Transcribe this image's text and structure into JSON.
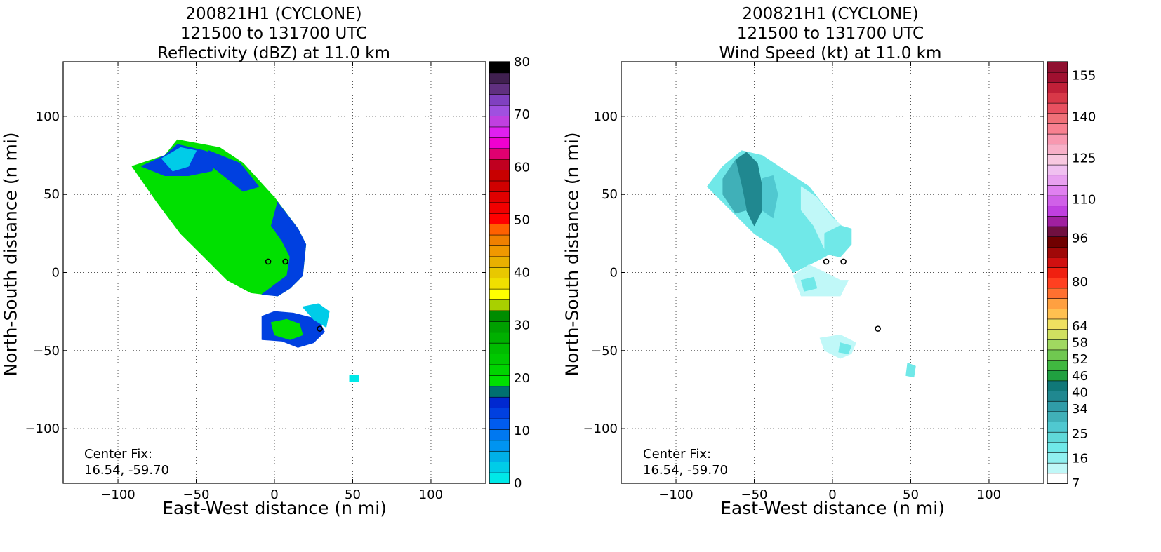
{
  "chart_data": [
    {
      "type": "heatmap",
      "title_lines": [
        "200821H1 (CYCLONE)",
        "121500 to 131700 UTC",
        "Reflectivity (dBZ) at 11.0 km"
      ],
      "xlabel": "East-West distance (n mi)",
      "ylabel": "North-South distance (n mi)",
      "xlim": [
        -135,
        135
      ],
      "ylim": [
        -135,
        135
      ],
      "xticks": [
        -100,
        -50,
        0,
        50,
        100
      ],
      "yticks": [
        -100,
        -50,
        0,
        50,
        100
      ],
      "xtick_labels": [
        "−100",
        "−50",
        "0",
        "50",
        "100"
      ],
      "ytick_labels": [
        "−100",
        "−50",
        "0",
        "50",
        "100"
      ],
      "grid": true,
      "annotation_lines": [
        "Center Fix:",
        "16.54, -59.70"
      ],
      "colorbar": {
        "range": [
          0,
          80
        ],
        "ticks": [
          0,
          10,
          20,
          30,
          40,
          50,
          60,
          70,
          80
        ],
        "tick_labels": [
          "0",
          "10",
          "20",
          "30",
          "40",
          "50",
          "60",
          "70",
          "80"
        ],
        "colors": [
          "#00e8e8",
          "#00cce8",
          "#00b0e8",
          "#0094f0",
          "#0078f0",
          "#005cf0",
          "#0040e0",
          "#0028d0",
          "#007070",
          "#00e000",
          "#00d400",
          "#00c800",
          "#00bc00",
          "#00b000",
          "#00a000",
          "#008c00",
          "#a8d000",
          "#ffff00",
          "#f0e000",
          "#e8c800",
          "#e8b000",
          "#f09800",
          "#f08000",
          "#ff6000",
          "#ff0000",
          "#f00000",
          "#e00000",
          "#d00000",
          "#c80000",
          "#c00020",
          "#e00070",
          "#f000d0",
          "#e020f0",
          "#c040e0",
          "#a050e0",
          "#8040c0",
          "#603080",
          "#402050",
          "#000000"
        ]
      },
      "fields": [
        {
          "region": "main-band",
          "polygon": [
            [
              -91,
              68
            ],
            [
              -70,
              75
            ],
            [
              -62,
              85
            ],
            [
              -35,
              80
            ],
            [
              -20,
              70
            ],
            [
              0,
              48
            ],
            [
              15,
              28
            ],
            [
              20,
              18
            ],
            [
              18,
              -2
            ],
            [
              10,
              -10
            ],
            [
              2,
              -15
            ],
            [
              -15,
              -13
            ],
            [
              -30,
              -5
            ],
            [
              -45,
              10
            ],
            [
              -60,
              25
            ],
            [
              -75,
              45
            ]
          ],
          "color": "#00e000"
        },
        {
          "region": "main-band-edge-west",
          "polygon": [
            [
              -85,
              68
            ],
            [
              -70,
              75
            ],
            [
              -62,
              82
            ],
            [
              -45,
              78
            ],
            [
              -35,
              75
            ],
            [
              -40,
              65
            ],
            [
              -55,
              62
            ],
            [
              -70,
              62
            ]
          ],
          "color": "#0040e0"
        },
        {
          "region": "main-band-edge-north",
          "polygon": [
            [
              -42,
              78
            ],
            [
              -22,
              70
            ],
            [
              -10,
              55
            ],
            [
              -20,
              52
            ],
            [
              -30,
              60
            ],
            [
              -40,
              68
            ]
          ],
          "color": "#0040e0"
        },
        {
          "region": "main-band-edge-east",
          "polygon": [
            [
              2,
              45
            ],
            [
              15,
              28
            ],
            [
              20,
              18
            ],
            [
              18,
              -2
            ],
            [
              10,
              -10
            ],
            [
              2,
              -15
            ],
            [
              -8,
              -14
            ],
            [
              0,
              -8
            ],
            [
              8,
              -2
            ],
            [
              10,
              10
            ],
            [
              5,
              20
            ],
            [
              -2,
              30
            ]
          ],
          "color": "#0040e0"
        },
        {
          "region": "cyan-core",
          "polygon": [
            [
              -72,
              73
            ],
            [
              -60,
              80
            ],
            [
              -50,
              78
            ],
            [
              -55,
              68
            ],
            [
              -65,
              65
            ]
          ],
          "color": "#00cce8"
        },
        {
          "region": "southern-cell",
          "polygon": [
            [
              -8,
              -28
            ],
            [
              0,
              -25
            ],
            [
              12,
              -26
            ],
            [
              20,
              -28
            ],
            [
              28,
              -30
            ],
            [
              32,
              -38
            ],
            [
              25,
              -45
            ],
            [
              15,
              -48
            ],
            [
              5,
              -44
            ],
            [
              -8,
              -43
            ]
          ],
          "color": "#0040e0"
        },
        {
          "region": "southern-cell-core",
          "polygon": [
            [
              -2,
              -32
            ],
            [
              8,
              -30
            ],
            [
              16,
              -33
            ],
            [
              18,
              -40
            ],
            [
              10,
              -43
            ],
            [
              0,
              -40
            ]
          ],
          "color": "#00e000"
        },
        {
          "region": "southern-cyan",
          "polygon": [
            [
              18,
              -22
            ],
            [
              28,
              -20
            ],
            [
              35,
              -25
            ],
            [
              33,
              -35
            ],
            [
              25,
              -30
            ]
          ],
          "color": "#00cce8"
        },
        {
          "region": "far-south-speck",
          "polygon": [
            [
              48,
              -66
            ],
            [
              54,
              -66
            ],
            [
              54,
              -70
            ],
            [
              48,
              -70
            ]
          ],
          "color": "#00e8e8"
        }
      ],
      "circles": [
        [
          -4,
          7
        ],
        [
          7,
          7
        ],
        [
          29,
          -36
        ]
      ]
    },
    {
      "type": "heatmap",
      "title_lines": [
        "200821H1 (CYCLONE)",
        "121500 to 131700 UTC",
        "Wind Speed (kt) at 11.0 km"
      ],
      "xlabel": "East-West distance (n mi)",
      "ylabel": "North-South distance (n mi)",
      "xlim": [
        -135,
        135
      ],
      "ylim": [
        -135,
        135
      ],
      "xticks": [
        -100,
        -50,
        0,
        50,
        100
      ],
      "yticks": [
        -100,
        -50,
        0,
        50,
        100
      ],
      "xtick_labels": [
        "−100",
        "−50",
        "0",
        "50",
        "100"
      ],
      "ytick_labels": [
        "−100",
        "−50",
        "0",
        "50",
        "100"
      ],
      "grid": true,
      "annotation_lines": [
        "Center Fix:",
        "16.54, -59.70"
      ],
      "colorbar": {
        "range": [
          7,
          160
        ],
        "ticks": [
          7,
          16,
          25,
          34,
          40,
          46,
          52,
          58,
          64,
          80,
          96,
          110,
          125,
          140,
          155
        ],
        "tick_labels": [
          "7",
          "16",
          "25",
          "34",
          "40",
          "46",
          "52",
          "58",
          "64",
          "80",
          "96",
          "110",
          "125",
          "140",
          "155"
        ],
        "colors": [
          "#ffffff",
          "#c0f8f8",
          "#90f0f0",
          "#70e8e8",
          "#60d8d8",
          "#50c8d0",
          "#40b0b8",
          "#309ca8",
          "#208890",
          "#107878",
          "#20a040",
          "#40b840",
          "#70c850",
          "#a0d860",
          "#d0e060",
          "#f0e060",
          "#ffc050",
          "#ffa040",
          "#ff7030",
          "#ff4020",
          "#f02010",
          "#d01010",
          "#a00808",
          "#700000",
          "#701040",
          "#a020a0",
          "#c040e0",
          "#d060e8",
          "#e080f0",
          "#e8a0f0",
          "#f0c0f0",
          "#f8c8e0",
          "#f8b0c8",
          "#f898b0",
          "#f88090",
          "#f07078",
          "#e85060",
          "#d83848",
          "#c02038",
          "#a01030",
          "#901030"
        ]
      },
      "fields": [
        {
          "region": "wind-band",
          "polygon": [
            [
              -80,
              55
            ],
            [
              -70,
              68
            ],
            [
              -58,
              78
            ],
            [
              -45,
              75
            ],
            [
              -30,
              65
            ],
            [
              -15,
              55
            ],
            [
              -5,
              42
            ],
            [
              5,
              30
            ],
            [
              8,
              25
            ],
            [
              10,
              20
            ],
            [
              -5,
              10
            ],
            [
              -15,
              5
            ],
            [
              -25,
              0
            ],
            [
              -35,
              15
            ],
            [
              -50,
              25
            ],
            [
              -65,
              40
            ]
          ],
          "color": "#70e8e8"
        },
        {
          "region": "wind-core-dark",
          "polygon": [
            [
              -62,
              72
            ],
            [
              -55,
              77
            ],
            [
              -48,
              70
            ],
            [
              -45,
              55
            ],
            [
              -45,
              40
            ],
            [
              -50,
              30
            ],
            [
              -55,
              40
            ],
            [
              -58,
              55
            ]
          ],
          "color": "#208890"
        },
        {
          "region": "wind-core-mid",
          "polygon": [
            [
              -70,
              60
            ],
            [
              -62,
              72
            ],
            [
              -58,
              55
            ],
            [
              -55,
              40
            ],
            [
              -62,
              38
            ],
            [
              -70,
              50
            ]
          ],
          "color": "#40b0b8"
        },
        {
          "region": "wind-core-mid2",
          "polygon": [
            [
              -45,
              60
            ],
            [
              -38,
              62
            ],
            [
              -35,
              50
            ],
            [
              -38,
              35
            ],
            [
              -45,
              40
            ]
          ],
          "color": "#50c8d0"
        },
        {
          "region": "wind-light-east",
          "polygon": [
            [
              -20,
              55
            ],
            [
              -10,
              48
            ],
            [
              0,
              35
            ],
            [
              8,
              28
            ],
            [
              5,
              15
            ],
            [
              -5,
              15
            ],
            [
              -12,
              30
            ],
            [
              -20,
              40
            ]
          ],
          "color": "#c0f8f8"
        },
        {
          "region": "wind-east-patch",
          "polygon": [
            [
              -5,
              25
            ],
            [
              5,
              30
            ],
            [
              12,
              28
            ],
            [
              12,
              18
            ],
            [
              5,
              10
            ],
            [
              -5,
              12
            ]
          ],
          "color": "#70e8e8"
        },
        {
          "region": "wind-south-patch",
          "polygon": [
            [
              -25,
              -2
            ],
            [
              -15,
              5
            ],
            [
              -5,
              0
            ],
            [
              5,
              -5
            ],
            [
              10,
              -5
            ],
            [
              5,
              -15
            ],
            [
              -5,
              -15
            ],
            [
              -20,
              -15
            ]
          ],
          "color": "#c0f8f8"
        },
        {
          "region": "wind-south-small",
          "polygon": [
            [
              -20,
              -5
            ],
            [
              -12,
              -3
            ],
            [
              -10,
              -10
            ],
            [
              -18,
              -12
            ]
          ],
          "color": "#70e8e8"
        },
        {
          "region": "wind-south-cell",
          "polygon": [
            [
              -8,
              -42
            ],
            [
              5,
              -40
            ],
            [
              15,
              -45
            ],
            [
              12,
              -52
            ],
            [
              5,
              -55
            ],
            [
              -5,
              -50
            ]
          ],
          "color": "#c0f8f8"
        },
        {
          "region": "wind-south-cell-core",
          "polygon": [
            [
              5,
              -45
            ],
            [
              12,
              -47
            ],
            [
              10,
              -52
            ],
            [
              4,
              -51
            ]
          ],
          "color": "#70e8e8"
        },
        {
          "region": "wind-far-south",
          "polygon": [
            [
              48,
              -58
            ],
            [
              53,
              -60
            ],
            [
              52,
              -67
            ],
            [
              47,
              -66
            ]
          ],
          "color": "#70e8e8"
        }
      ],
      "circles": [
        [
          -4,
          7
        ],
        [
          7,
          7
        ],
        [
          29,
          -36
        ]
      ]
    }
  ]
}
